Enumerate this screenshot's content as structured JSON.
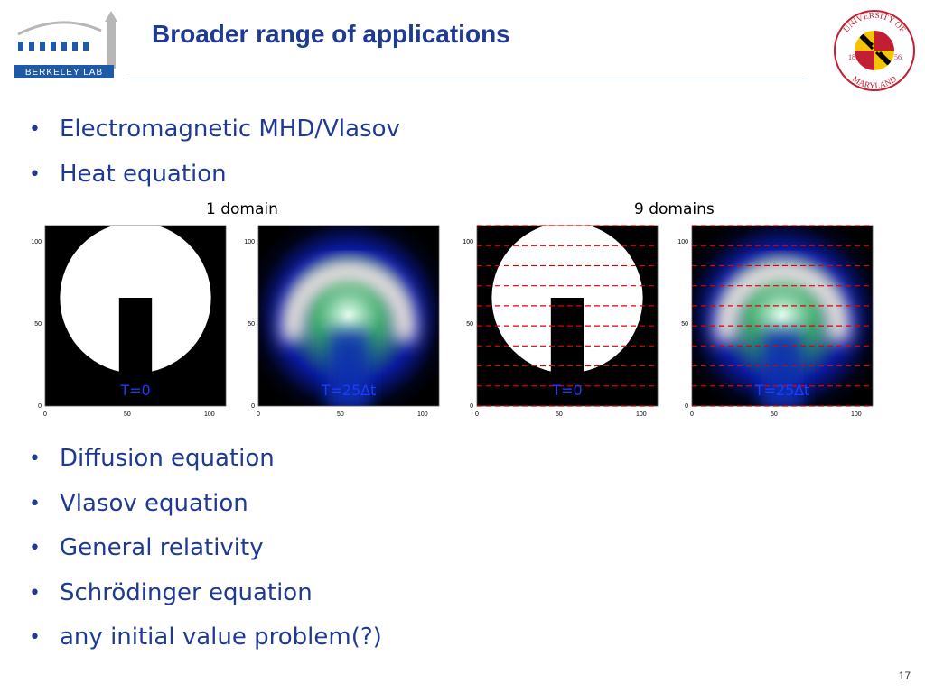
{
  "slide": {
    "title": "Broader range of applications",
    "page_number": "17"
  },
  "logos": {
    "left": {
      "name": "Berkeley Lab",
      "text": "BERKELEY LAB"
    },
    "right": {
      "name": "University of Maryland",
      "ring_text": "UNIVERSITY OF MARYLAND",
      "year_left": "18",
      "year_right": "56"
    }
  },
  "bullets_top": [
    "Electromagnetic MHD/Vlasov",
    "Heat equation"
  ],
  "figure": {
    "group_labels": [
      "1 domain",
      "9 domains"
    ],
    "panels": [
      {
        "time_label": "T=0",
        "kind": "initial",
        "domains": 1
      },
      {
        "time_label": "T=25∆t",
        "kind": "diffused",
        "domains": 1
      },
      {
        "time_label": "T=0",
        "kind": "initial",
        "domains": 9
      },
      {
        "time_label": "T=25∆t",
        "kind": "diffused",
        "domains": 9
      }
    ],
    "x_ticks": [
      "0",
      "50",
      "100"
    ],
    "y_ticks": [
      "0",
      "50",
      "100"
    ],
    "label_color": "#1a3cff",
    "divider_color": "#e00000"
  },
  "bullets_bottom": [
    "Diffusion equation",
    "Vlasov equation",
    "General relativity",
    "Schrödinger equation",
    "any initial value problem(?)"
  ]
}
